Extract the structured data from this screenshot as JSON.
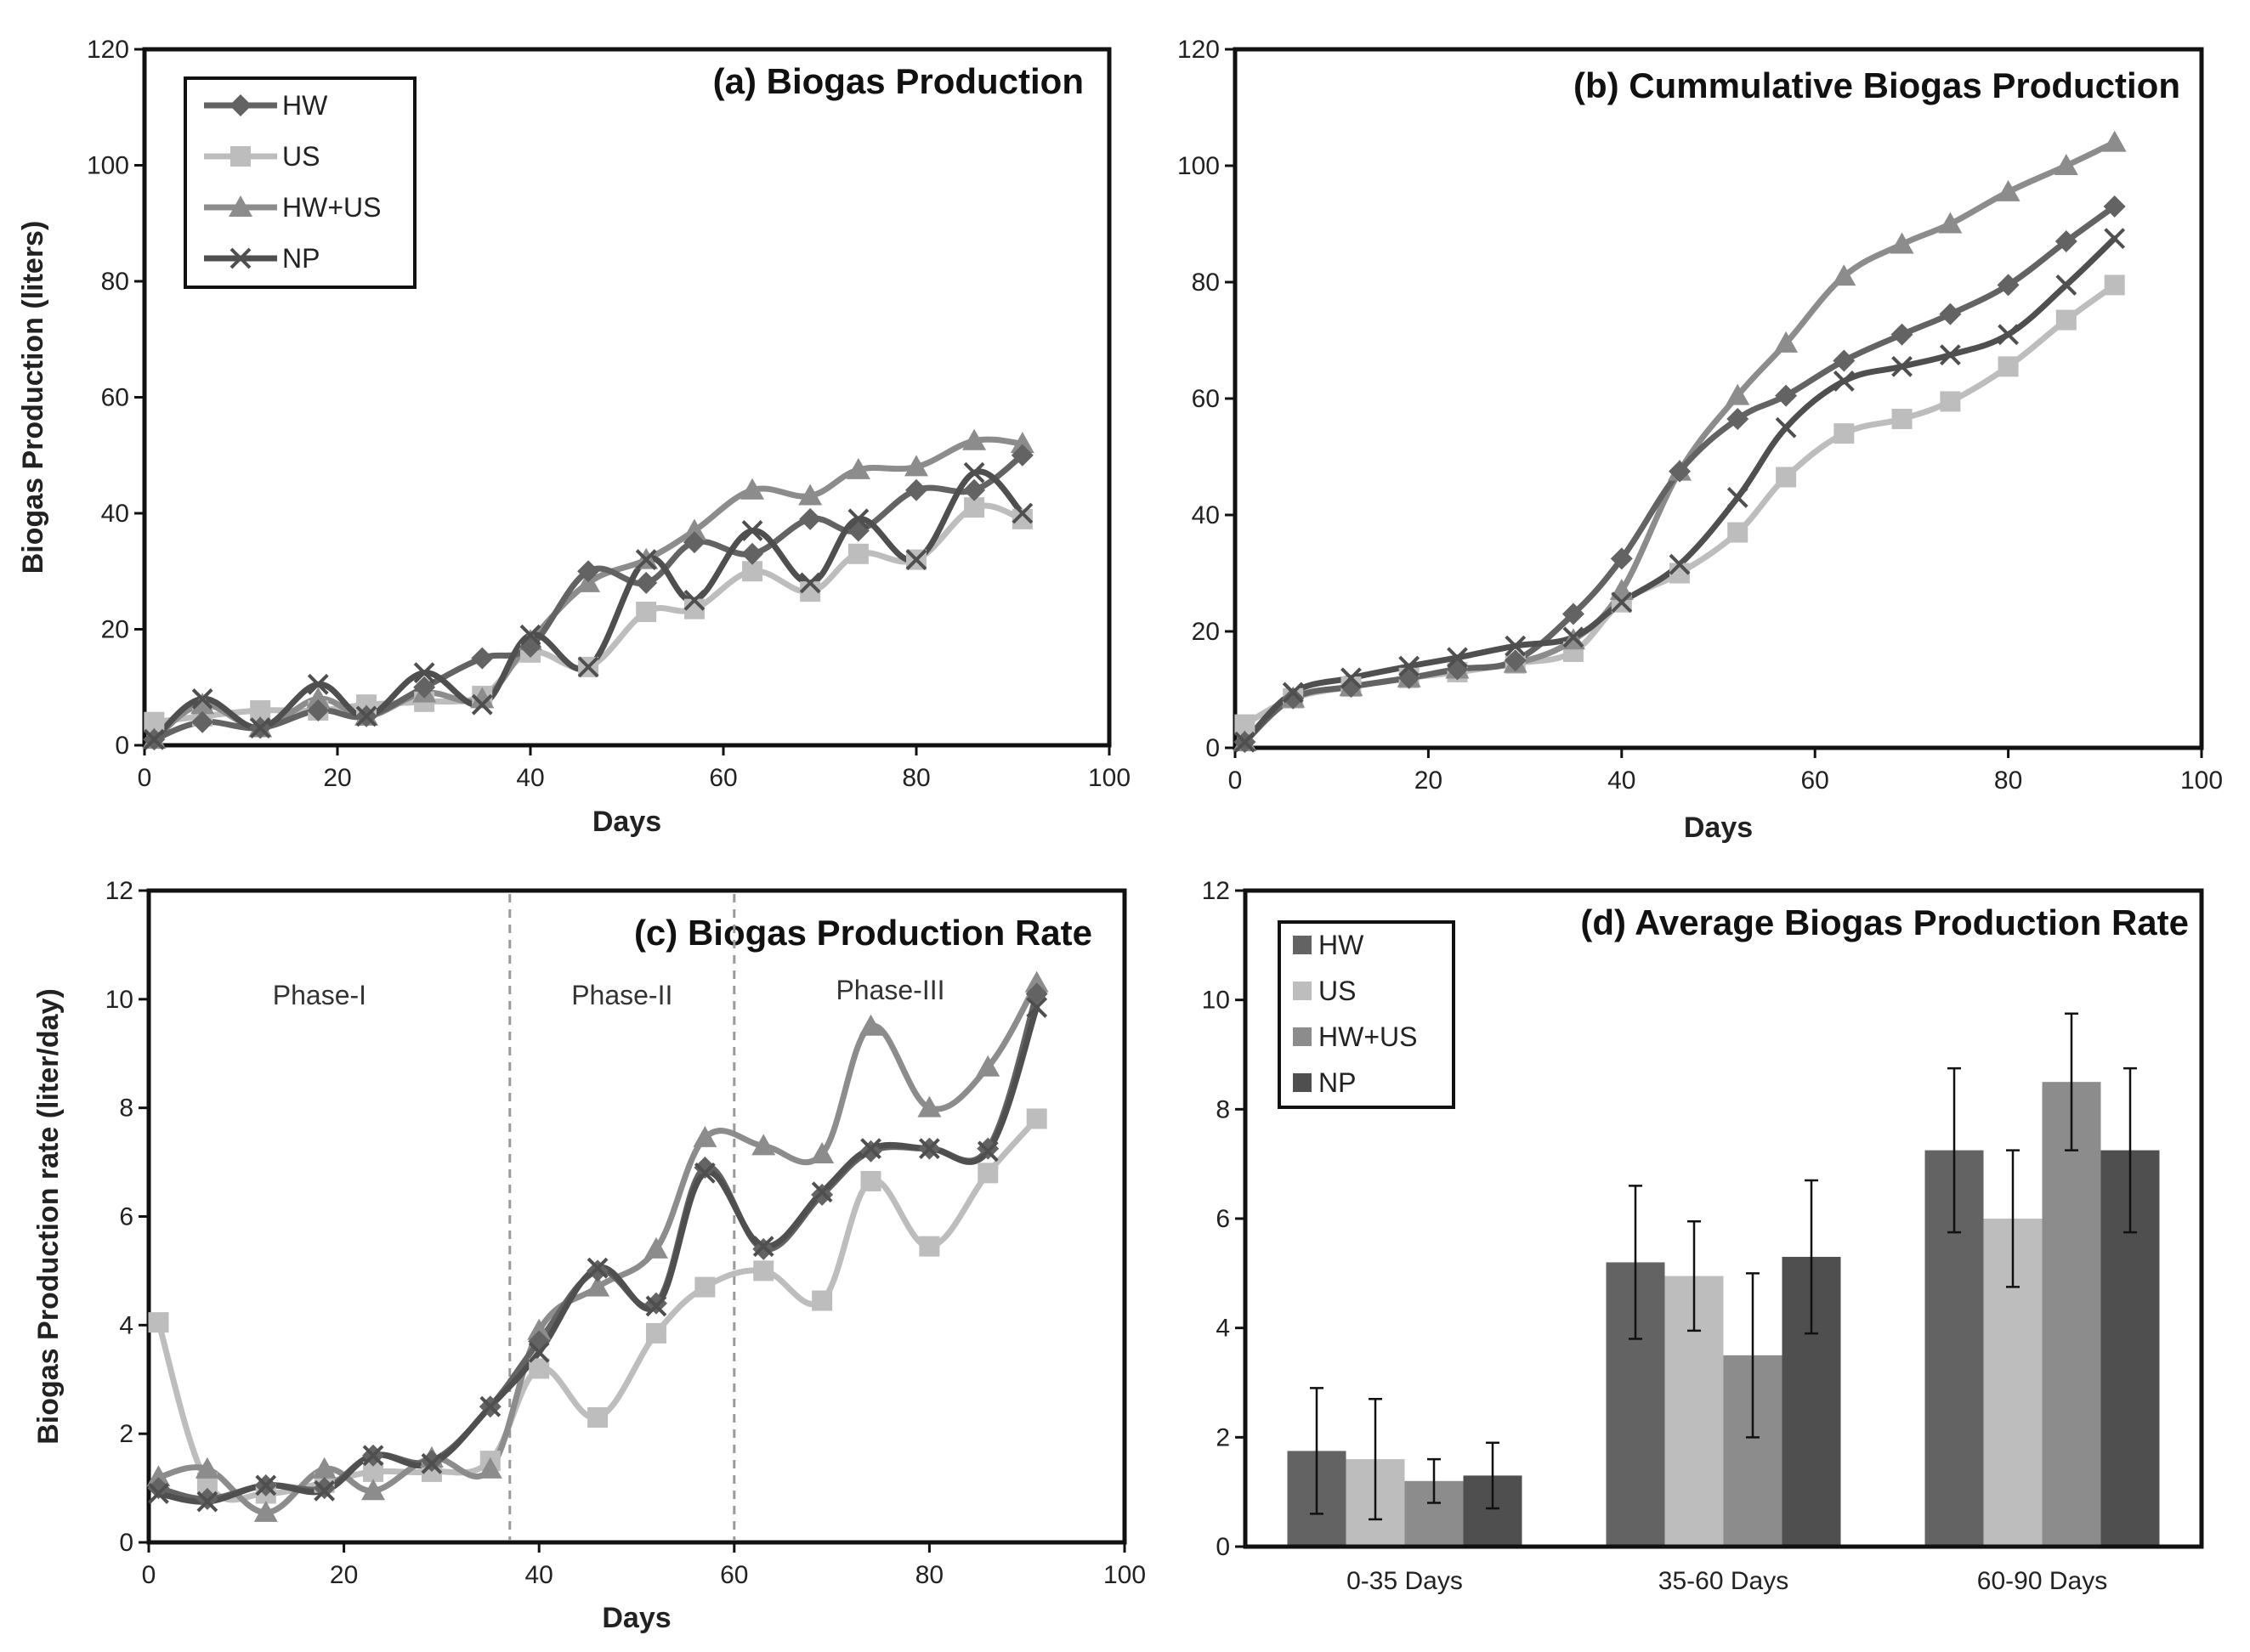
{
  "colors": {
    "HW": "#636363",
    "US": "#bdbdbd",
    "HW+US": "#8c8c8c",
    "NP": "#4f4f4f",
    "axis": "#111111",
    "guide": "#9a9a9a"
  },
  "chart_data": [
    {
      "id": "a",
      "type": "line",
      "title": "(a) Biogas Production",
      "xlabel": "Days",
      "ylabel": "Biogas Production (liters)",
      "xlim": [
        0,
        100
      ],
      "ylim": [
        0,
        120
      ],
      "xticks": [
        0,
        20,
        40,
        60,
        80,
        100
      ],
      "yticks": [
        0,
        20,
        40,
        60,
        80,
        100,
        120
      ],
      "xtick_labels": [
        "0",
        "20",
        "40",
        "60",
        "80",
        "100"
      ],
      "ytick_labels": [
        "0",
        "20",
        "40",
        "60",
        "80",
        "100",
        "120"
      ],
      "legend_position": "top-left",
      "legend_style": "line",
      "x": [
        1,
        6,
        12,
        18,
        23,
        29,
        35,
        40,
        46,
        52,
        57,
        63,
        69,
        74,
        80,
        86,
        91
      ],
      "series": [
        {
          "name": "HW",
          "marker": "diamond",
          "values": [
            1,
            4,
            3,
            6,
            5,
            10,
            15,
            17,
            30,
            28,
            35,
            33,
            39,
            37,
            44,
            44,
            50
          ]
        },
        {
          "name": "US",
          "marker": "square",
          "values": [
            4,
            5,
            6,
            6,
            7,
            7.5,
            8.5,
            16,
            13.5,
            23,
            23.5,
            30,
            26.5,
            33,
            32,
            41,
            39
          ]
        },
        {
          "name": "HW+US",
          "marker": "triangle",
          "values": [
            1,
            7,
            3,
            8,
            5,
            9,
            8,
            18,
            28,
            32,
            37,
            44,
            43,
            47.5,
            48,
            52.5,
            52
          ]
        },
        {
          "name": "NP",
          "marker": "x",
          "values": [
            1,
            8,
            3,
            10.5,
            5,
            12.5,
            7,
            19,
            13.5,
            32,
            25,
            37,
            28,
            39,
            32,
            47,
            40
          ]
        }
      ]
    },
    {
      "id": "b",
      "type": "line",
      "title": "(b) Cummulative Biogas Production",
      "xlabel": "Days",
      "ylabel": "",
      "xlim": [
        0,
        100
      ],
      "ylim": [
        0,
        120
      ],
      "xticks": [
        0,
        20,
        40,
        60,
        80,
        100
      ],
      "yticks": [
        0,
        20,
        40,
        60,
        80,
        100,
        120
      ],
      "xtick_labels": [
        "0",
        "20",
        "40",
        "60",
        "80",
        "100"
      ],
      "ytick_labels": [
        "0",
        "20",
        "40",
        "60",
        "80",
        "100",
        "120"
      ],
      "x": [
        1,
        6,
        12,
        18,
        23,
        29,
        35,
        40,
        46,
        52,
        57,
        63,
        69,
        74,
        80,
        86,
        91
      ],
      "series": [
        {
          "name": "HW",
          "marker": "diamond",
          "values": [
            1,
            8.5,
            10.5,
            12,
            13.5,
            15,
            23,
            32.5,
            47.5,
            56.5,
            60.5,
            66.5,
            71,
            74.5,
            79.5,
            87,
            93
          ]
        },
        {
          "name": "US",
          "marker": "square",
          "values": [
            4,
            8.5,
            10.5,
            12,
            13,
            14.5,
            16.5,
            25,
            30,
            37,
            46.5,
            54,
            56.5,
            59.5,
            65.5,
            73.5,
            79.5
          ]
        },
        {
          "name": "HW+US",
          "marker": "triangle",
          "values": [
            1,
            8.5,
            10.5,
            12,
            13.5,
            14.5,
            18.5,
            27,
            47.5,
            60.5,
            69.5,
            81,
            86.5,
            90,
            95.5,
            100,
            104
          ]
        },
        {
          "name": "NP",
          "marker": "x",
          "values": [
            1,
            9.5,
            12,
            14,
            15.5,
            17.5,
            19,
            25,
            31.5,
            43,
            55,
            63,
            65.5,
            67.5,
            71,
            79.5,
            87.5
          ]
        }
      ]
    },
    {
      "id": "c",
      "type": "line",
      "title": "(c) Biogas Production Rate",
      "xlabel": "Days",
      "ylabel": "Biogas Production rate (liter/day)",
      "xlim": [
        0,
        100
      ],
      "ylim": [
        0,
        12
      ],
      "xticks": [
        0,
        20,
        40,
        60,
        80,
        100
      ],
      "yticks": [
        0,
        2,
        4,
        6,
        8,
        10,
        12
      ],
      "xtick_labels": [
        "0",
        "20",
        "40",
        "60",
        "80",
        "100"
      ],
      "ytick_labels": [
        "0",
        "2",
        "4",
        "6",
        "8",
        "10",
        "12"
      ],
      "phase_lines": [
        37,
        60
      ],
      "phases": [
        {
          "label": "Phase-I",
          "x": 17.5,
          "y": 9.9
        },
        {
          "label": "Phase-II",
          "x": 48.5,
          "y": 9.9
        },
        {
          "label": "Phase-III",
          "x": 76,
          "y": 10.0
        }
      ],
      "x": [
        1,
        6,
        12,
        18,
        23,
        29,
        35,
        40,
        46,
        52,
        57,
        63,
        69,
        74,
        80,
        86,
        91
      ],
      "series": [
        {
          "name": "HW",
          "marker": "diamond",
          "values": [
            1.0,
            0.8,
            1.05,
            1.0,
            1.6,
            1.5,
            2.5,
            3.7,
            5.0,
            4.4,
            6.9,
            5.4,
            6.4,
            7.2,
            7.25,
            7.25,
            10.1
          ]
        },
        {
          "name": "US",
          "marker": "square",
          "values": [
            4.05,
            1.1,
            0.9,
            1.1,
            1.3,
            1.3,
            1.5,
            3.2,
            2.3,
            3.85,
            4.7,
            5.0,
            4.45,
            6.65,
            5.45,
            6.8,
            7.8
          ]
        },
        {
          "name": "HW+US",
          "marker": "triangle",
          "values": [
            1.2,
            1.35,
            0.55,
            1.35,
            0.95,
            1.55,
            1.35,
            3.9,
            4.7,
            5.4,
            7.45,
            7.3,
            7.15,
            9.5,
            8.0,
            8.75,
            10.3
          ]
        },
        {
          "name": "NP",
          "marker": "x",
          "values": [
            0.9,
            0.75,
            1.05,
            0.95,
            1.6,
            1.45,
            2.5,
            3.5,
            5.05,
            4.35,
            6.8,
            5.45,
            6.45,
            7.25,
            7.25,
            7.2,
            9.85
          ]
        }
      ]
    },
    {
      "id": "d",
      "type": "bar",
      "title": "(d) Average Biogas Production Rate",
      "xlabel": "",
      "ylabel": "",
      "ylim": [
        0,
        12
      ],
      "yticks": [
        0,
        2,
        4,
        6,
        8,
        10,
        12
      ],
      "ytick_labels": [
        "0",
        "2",
        "4",
        "6",
        "8",
        "10",
        "12"
      ],
      "legend_position": "top-left",
      "legend_style": "box",
      "categories": [
        "0-35 Days",
        "35-60 Days",
        "60-90 Days"
      ],
      "series": [
        {
          "name": "HW",
          "values": [
            1.75,
            5.2,
            7.25
          ],
          "errors": [
            1.15,
            1.4,
            1.5
          ]
        },
        {
          "name": "US",
          "values": [
            1.6,
            4.95,
            6.0
          ],
          "errors": [
            1.1,
            1.0,
            1.25
          ]
        },
        {
          "name": "HW+US",
          "values": [
            1.2,
            3.5,
            8.5
          ],
          "errors": [
            0.4,
            1.5,
            1.25
          ]
        },
        {
          "name": "NP",
          "values": [
            1.3,
            5.3,
            7.25
          ],
          "errors": [
            0.6,
            1.4,
            1.5
          ]
        }
      ]
    }
  ]
}
